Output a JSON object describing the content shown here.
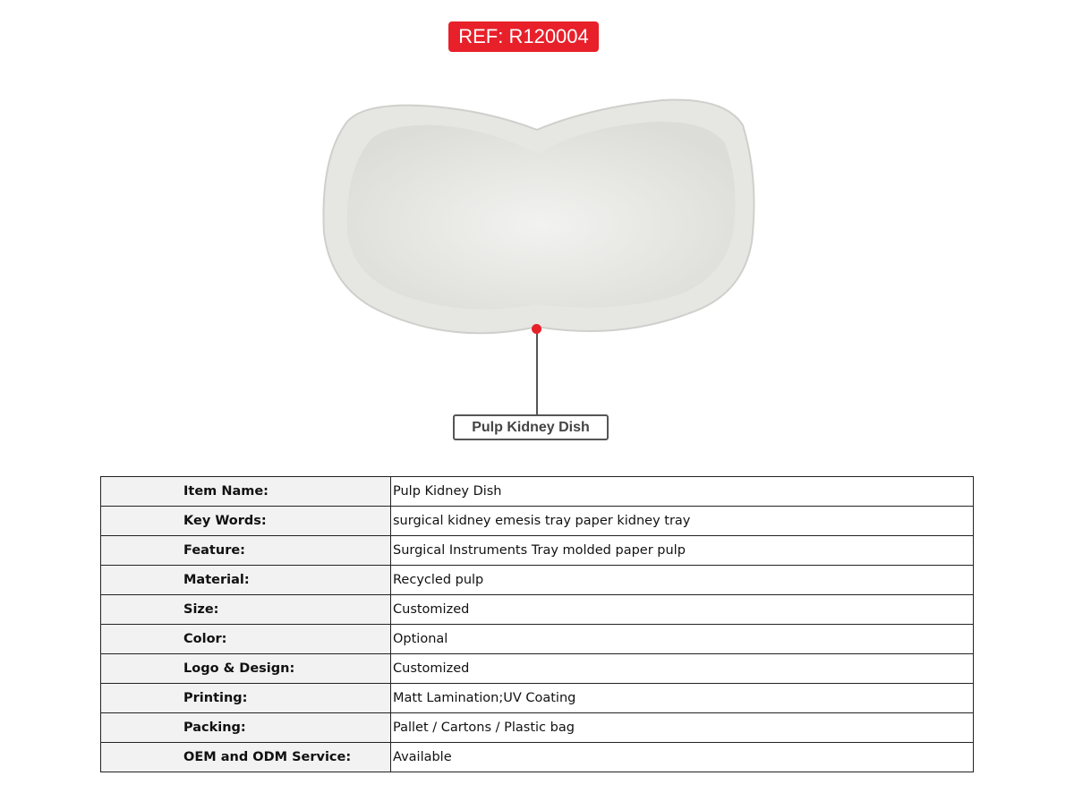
{
  "ref_badge": "REF: R120004",
  "accent_color": "#e8202a",
  "product_callout": "Pulp Kidney Dish",
  "specs": [
    {
      "label": "Item Name:",
      "value": "Pulp Kidney Dish"
    },
    {
      "label": "Key Words:",
      "value": "surgical kidney emesis tray paper kidney tray"
    },
    {
      "label": "Feature:",
      "value": "Surgical Instruments Tray molded paper pulp"
    },
    {
      "label": "Material:",
      "value": "Recycled pulp"
    },
    {
      "label": "Size:",
      "value": "Customized"
    },
    {
      "label": "Color:",
      "value": "Optional"
    },
    {
      "label": "Logo & Design:",
      "value": "Customized"
    },
    {
      "label": "Printing:",
      "value": "Matt Lamination;UV Coating"
    },
    {
      "label": "Packing:",
      "value": "Pallet / Cartons / Plastic bag"
    },
    {
      "label": "OEM and ODM Service:",
      "value": "Available"
    }
  ]
}
